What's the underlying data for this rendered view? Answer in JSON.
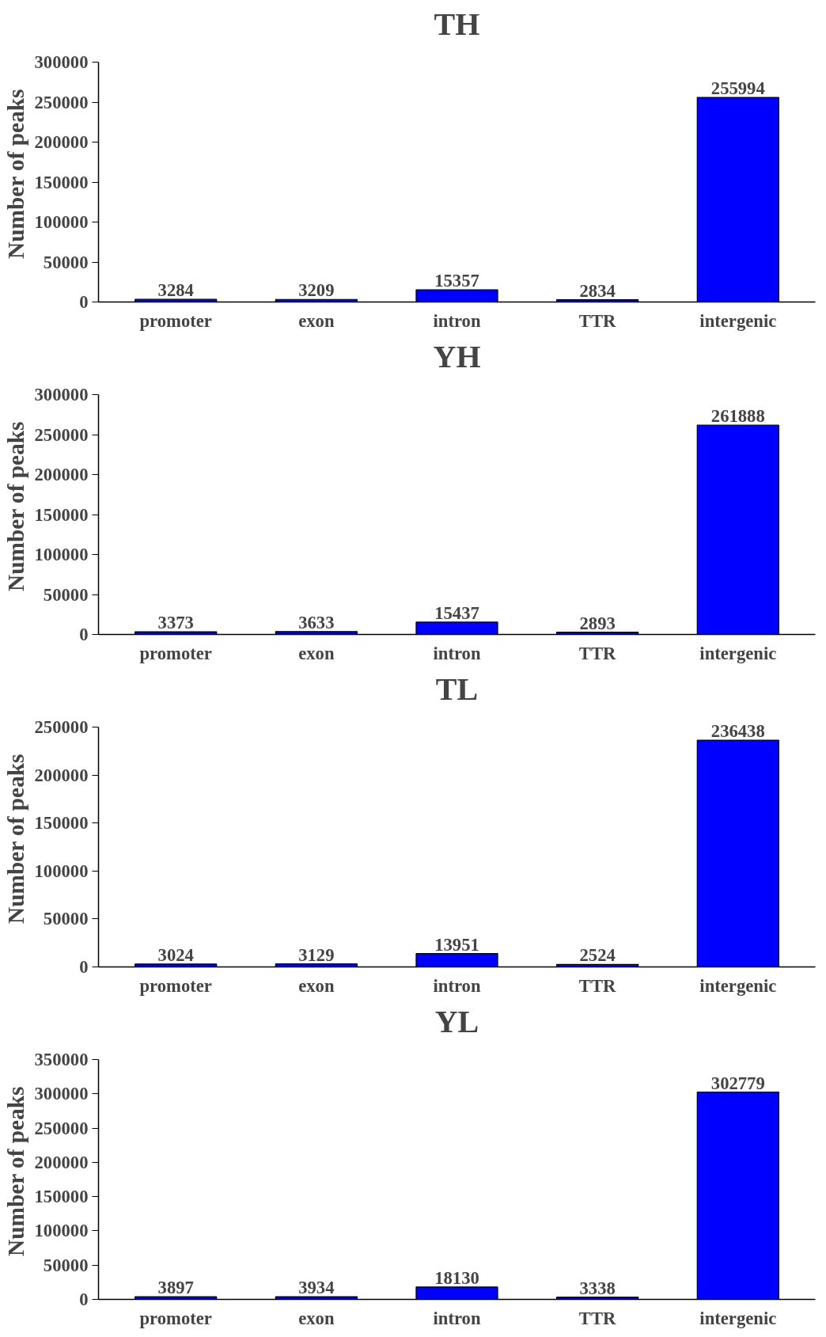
{
  "chart_data": [
    {
      "type": "bar",
      "title": "TH",
      "ylabel": "Number of peaks",
      "categories": [
        "promoter",
        "exon",
        "intron",
        "TTR",
        "intergenic"
      ],
      "values": [
        3284,
        3209,
        15357,
        2834,
        255994
      ],
      "color": "#0000ff",
      "ylim": [
        0,
        300000
      ],
      "yticks": [
        0,
        50000,
        100000,
        150000,
        200000,
        250000,
        300000
      ],
      "data_labels": true,
      "grid": false,
      "legend": false
    },
    {
      "type": "bar",
      "title": "YH",
      "ylabel": "Number of peaks",
      "categories": [
        "promoter",
        "exon",
        "intron",
        "TTR",
        "intergenic"
      ],
      "values": [
        3373,
        3633,
        15437,
        2893,
        261888
      ],
      "color": "#0000ff",
      "ylim": [
        0,
        300000
      ],
      "yticks": [
        0,
        50000,
        100000,
        150000,
        200000,
        250000,
        300000
      ],
      "data_labels": true,
      "grid": false,
      "legend": false
    },
    {
      "type": "bar",
      "title": "TL",
      "ylabel": "Number of peaks",
      "categories": [
        "promoter",
        "exon",
        "intron",
        "TTR",
        "intergenic"
      ],
      "values": [
        3024,
        3129,
        13951,
        2524,
        236438
      ],
      "color": "#0000ff",
      "ylim": [
        0,
        250000
      ],
      "yticks": [
        0,
        50000,
        100000,
        150000,
        200000,
        250000
      ],
      "data_labels": true,
      "grid": false,
      "legend": false
    },
    {
      "type": "bar",
      "title": "YL",
      "ylabel": "Number of peaks",
      "categories": [
        "promoter",
        "exon",
        "intron",
        "TTR",
        "intergenic"
      ],
      "values": [
        3897,
        3934,
        18130,
        3338,
        302779
      ],
      "color": "#0000ff",
      "ylim": [
        0,
        350000
      ],
      "yticks": [
        0,
        50000,
        100000,
        150000,
        200000,
        250000,
        300000,
        350000
      ],
      "data_labels": true,
      "grid": false,
      "legend": false
    }
  ]
}
